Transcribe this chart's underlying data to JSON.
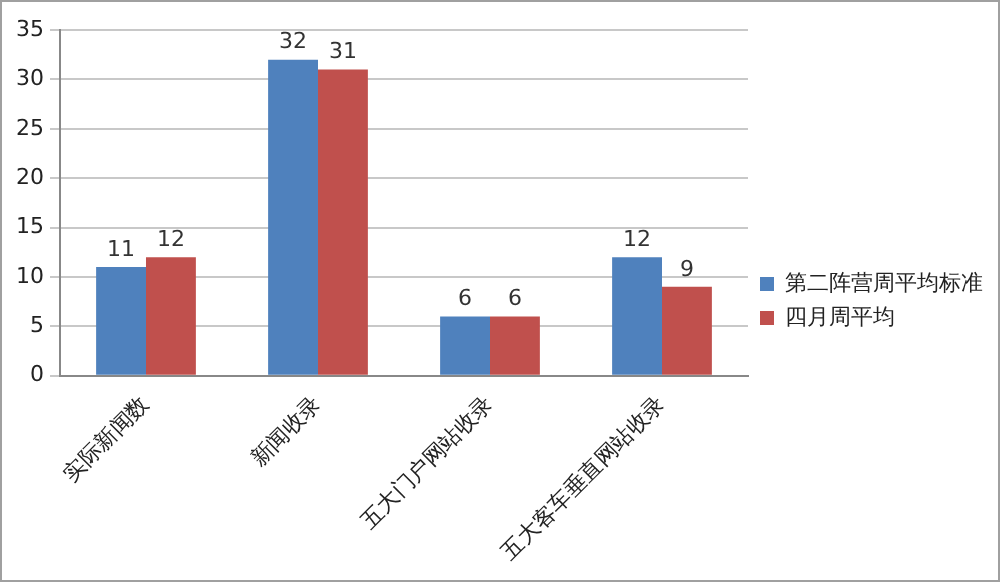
{
  "chart_data": {
    "type": "bar",
    "categories": [
      "实际新闻数",
      "新闻收录",
      "五大门户网站收录",
      "五大客车垂直网站收录"
    ],
    "series": [
      {
        "name": "第二阵营周平均标准",
        "color": "#4f81bd",
        "values": [
          11,
          32,
          6,
          12
        ]
      },
      {
        "name": "四月周平均",
        "color": "#c0504d",
        "values": [
          12,
          31,
          6,
          9
        ]
      }
    ],
    "ylim": [
      0,
      35
    ],
    "yticks": [
      0,
      5,
      10,
      15,
      20,
      25,
      30,
      35
    ],
    "grid": "y",
    "legend": "right",
    "data_labels": true
  }
}
